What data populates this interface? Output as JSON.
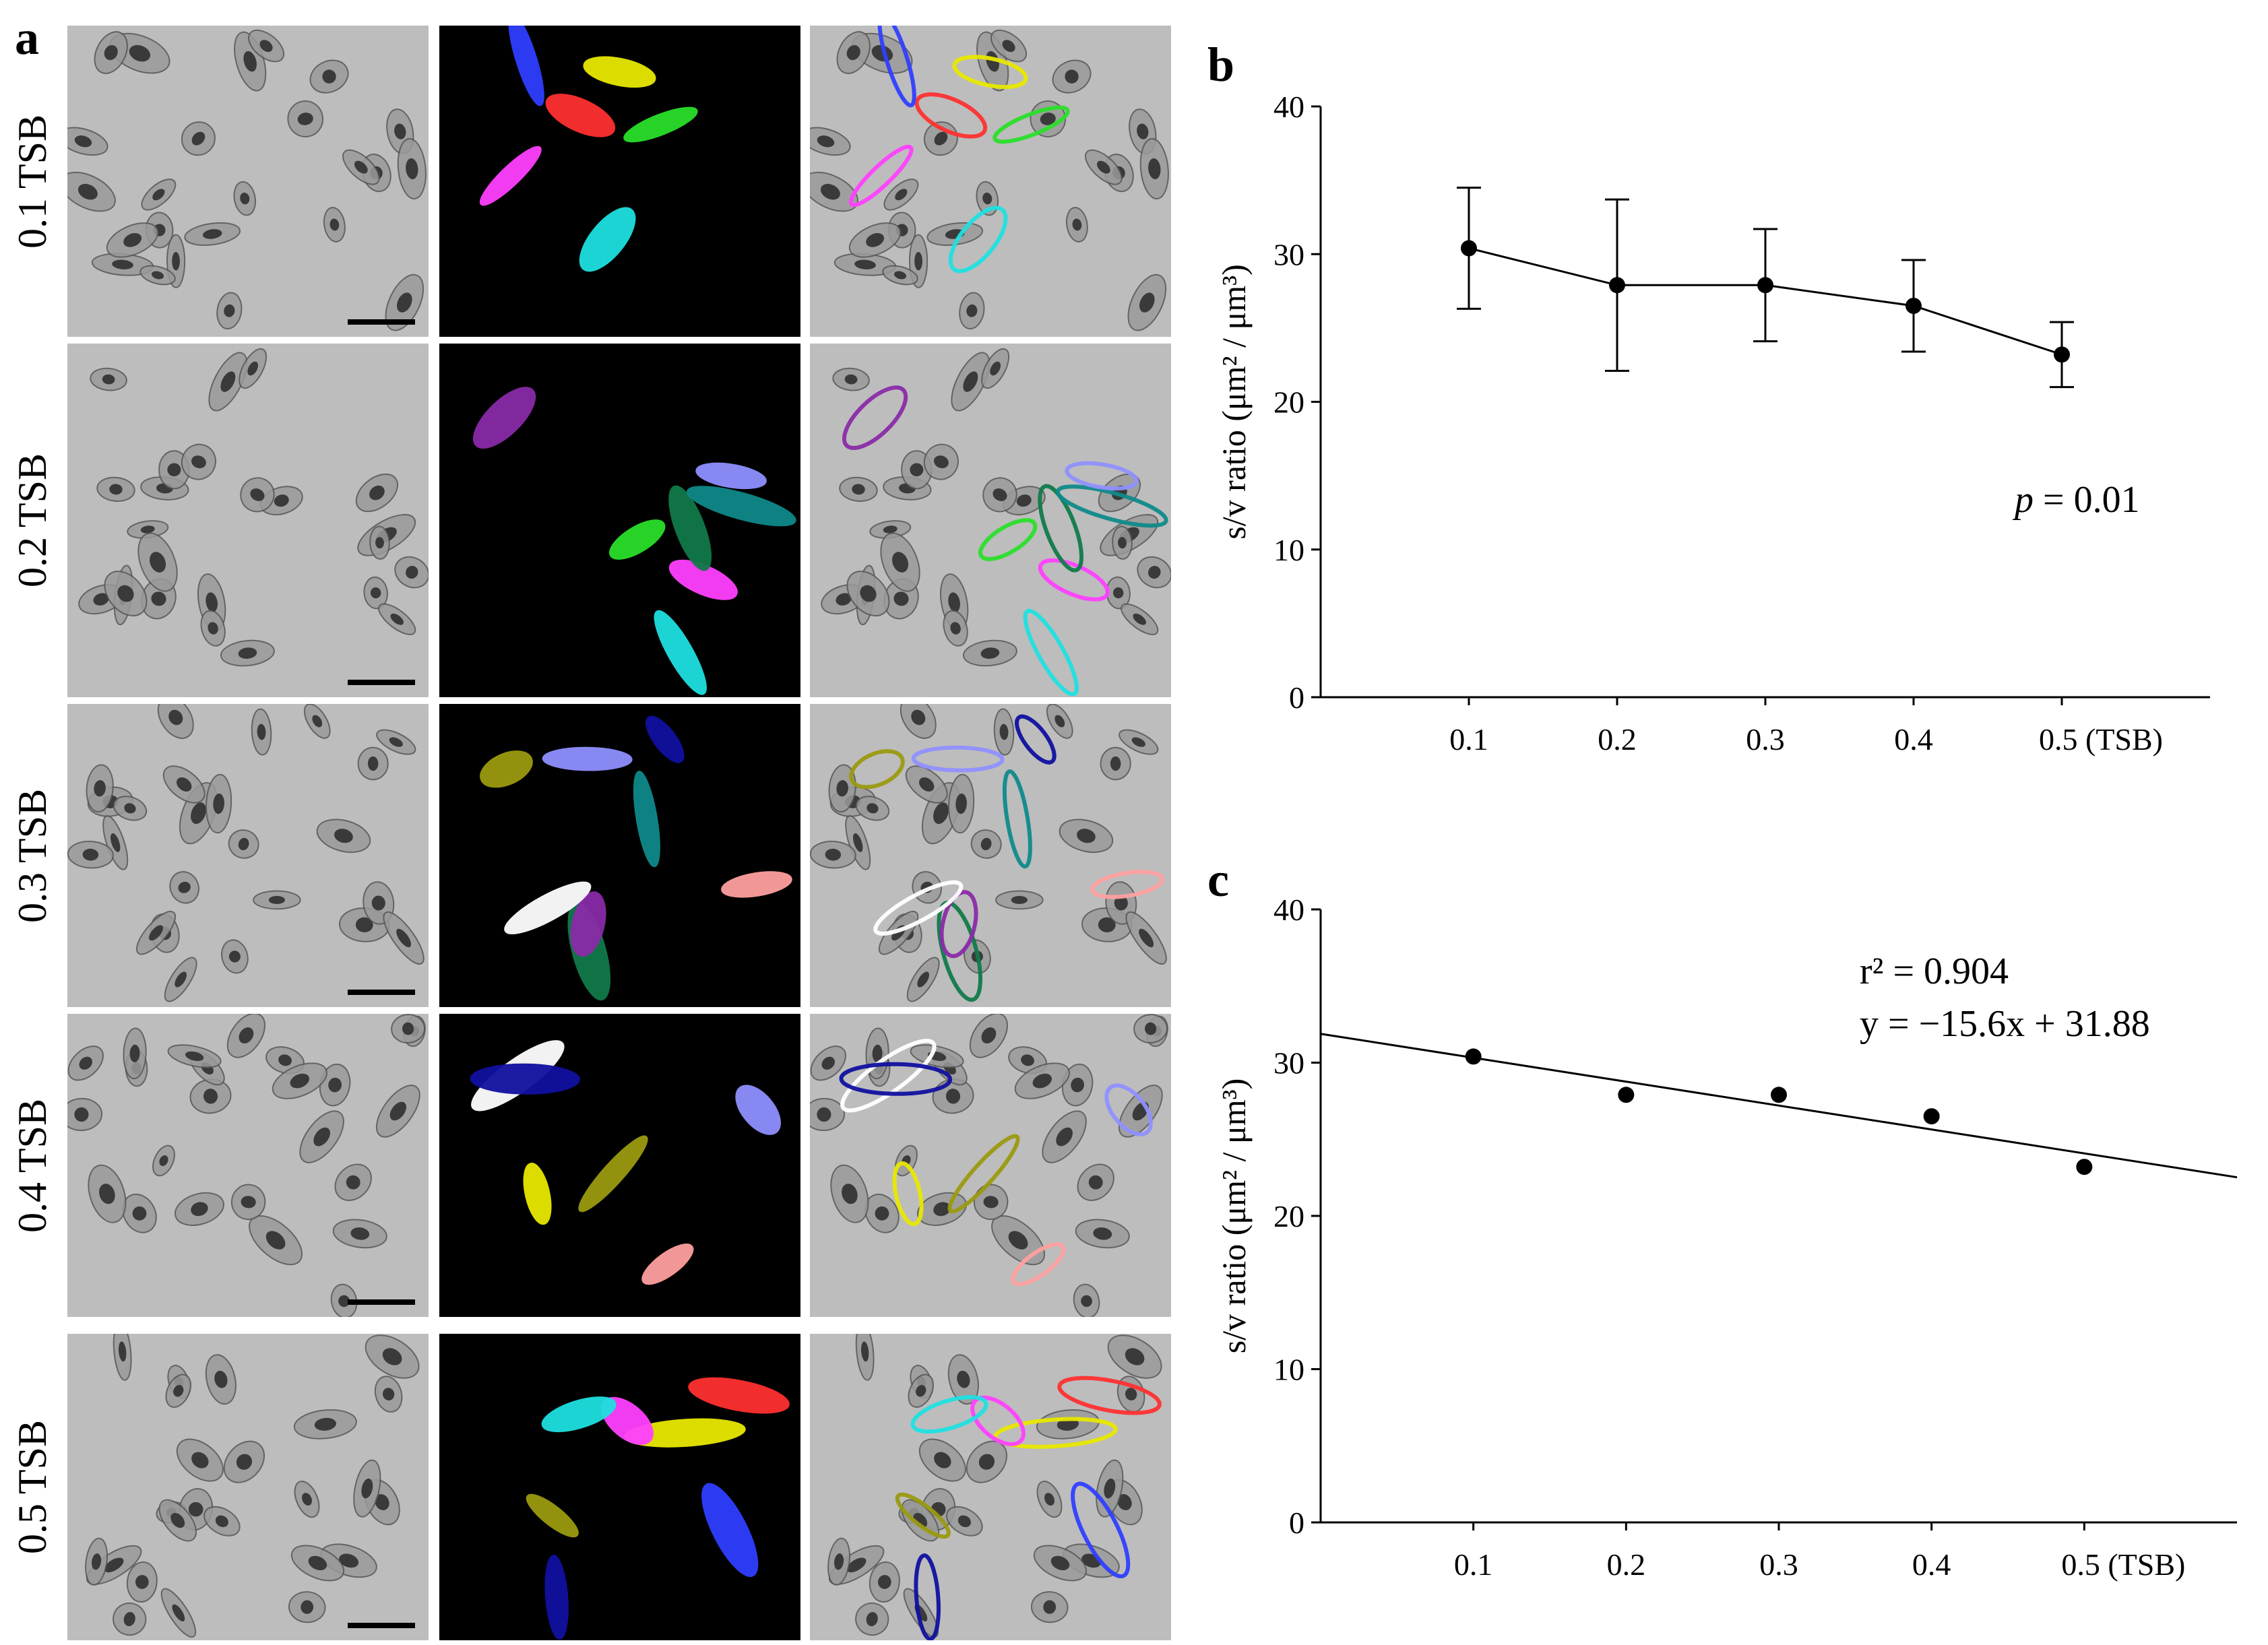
{
  "panel_letters": {
    "a": "a",
    "b": "b",
    "c": "c"
  },
  "panel_a": {
    "rows": [
      {
        "label": "0.1 TSB"
      },
      {
        "label": "0.2 TSB"
      },
      {
        "label": "0.3 TSB"
      },
      {
        "label": "0.4 TSB"
      },
      {
        "label": "0.5 TSB"
      }
    ],
    "columns": [
      "grayscale-micrograph",
      "3d-reconstruction",
      "overlay"
    ],
    "segment_colors": [
      "#e8e800",
      "#ff3030",
      "#2f3fff",
      "#ff40ff",
      "#1fe0e0",
      "#2adf2a",
      "#117a4a",
      "#8a2ba8",
      "#0f8a8a",
      "#9090ff",
      "#ffa0a0",
      "#ffffff",
      "#9a9a10",
      "#1010a0"
    ]
  },
  "chart_data": [
    {
      "id": "b",
      "type": "line",
      "categories": [
        "0.1",
        "0.2",
        "0.3",
        "0.4",
        "0.5 (TSB)"
      ],
      "x": [
        0.1,
        0.2,
        0.3,
        0.4,
        0.5
      ],
      "series": [
        {
          "values": [
            30.4,
            27.9,
            27.9,
            26.5,
            23.2
          ],
          "error": [
            4.1,
            5.8,
            3.8,
            3.1,
            2.2
          ]
        }
      ],
      "ylabel": "s/v ratio (μm² / μm³)",
      "ylim": [
        0,
        40
      ],
      "yticks": [
        0,
        10,
        20,
        30,
        40
      ],
      "annotation": {
        "italic": "p",
        "text": " = 0.01"
      },
      "grid": false
    },
    {
      "id": "c",
      "type": "scatter",
      "categories": [
        "0.1",
        "0.2",
        "0.3",
        "0.4",
        "0.5 (TSB)"
      ],
      "x": [
        0.1,
        0.2,
        0.3,
        0.4,
        0.5
      ],
      "series": [
        {
          "values": [
            30.4,
            27.9,
            27.9,
            26.5,
            23.2
          ]
        }
      ],
      "fit": {
        "slope": -15.6,
        "intercept": 31.88,
        "x_range": [
          0,
          0.6
        ]
      },
      "ylabel": "s/v ratio (μm² / μm³)",
      "ylim": [
        0,
        40
      ],
      "yticks": [
        0,
        10,
        20,
        30,
        40
      ],
      "annotations": [
        "r² = 0.904",
        "y = −15.6x + 31.88"
      ],
      "grid": false
    }
  ]
}
